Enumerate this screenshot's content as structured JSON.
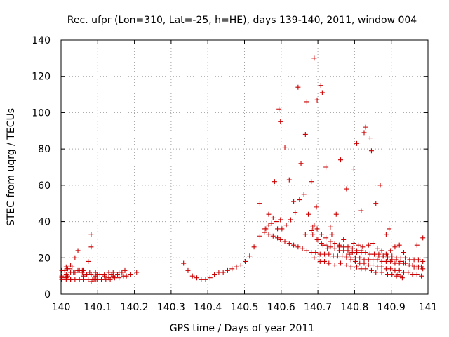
{
  "chart_data": {
    "type": "scatter",
    "title": "Rec. ufpr (Lon=310, Lat=-25, h=HE), days 139-140, 2011, window 004",
    "xlabel": "GPS time / Days of year 2011",
    "ylabel": "STEC from uqrg / TECUs",
    "xlim": [
      140,
      141
    ],
    "ylim": [
      0,
      140
    ],
    "xticks": [
      140,
      140.1,
      140.2,
      140.3,
      140.4,
      140.5,
      140.6,
      140.7,
      140.8,
      140.9,
      141
    ],
    "xtick_labels": [
      "140",
      "140.1",
      "140.2",
      "140.3",
      "140.4",
      "140.5",
      "140.6",
      "140.7",
      "140.8",
      "140.9",
      "141"
    ],
    "yticks": [
      0,
      20,
      40,
      60,
      80,
      100,
      120,
      140
    ],
    "ytick_labels": [
      "0",
      "20",
      "40",
      "60",
      "80",
      "100",
      "120",
      "140"
    ],
    "grid": true,
    "marker": "+",
    "series": [
      {
        "name": "STEC",
        "color": "#cc0000",
        "x": [
          140.002,
          140.002,
          140.002,
          140.014,
          140.014,
          140.014,
          140.018,
          140.026,
          140.026,
          140.026,
          140.038,
          140.038,
          140.046,
          140.058,
          140.062,
          140.074,
          140.082,
          140.082,
          140.082,
          140.09,
          140.094,
          140.094,
          140.106,
          140.118,
          140.13,
          140.142,
          140.154,
          140.166,
          140.178,
          140.19,
          140.206,
          140.002,
          140.014,
          140.026,
          140.038,
          140.05,
          140.062,
          140.074,
          140.086,
          140.098,
          140.11,
          140.122,
          140.134,
          140.146,
          140.158,
          140.17,
          140.01,
          140.022,
          140.034,
          140.046,
          140.058,
          140.07,
          140.082,
          140.094,
          140.106,
          140.118,
          140.13,
          140.142,
          140.018,
          140.03,
          140.05,
          140.062,
          140.078,
          140.098,
          140.138,
          140.158,
          140.174,
          140.334,
          140.346,
          140.358,
          140.37,
          140.382,
          140.394,
          140.406,
          140.418,
          140.43,
          140.442,
          140.454,
          140.466,
          140.478,
          140.49,
          140.502,
          140.514,
          140.526,
          140.542,
          140.554,
          140.558,
          140.566,
          140.574,
          140.586,
          140.598,
          140.542,
          140.554,
          140.566,
          140.578,
          140.59,
          140.598,
          140.61,
          140.622,
          140.634,
          140.646,
          140.658,
          140.67,
          140.682,
          140.694,
          140.706,
          140.718,
          140.73,
          140.742,
          140.754,
          140.766,
          140.778,
          140.79,
          140.802,
          140.814,
          140.826,
          140.838,
          140.85,
          140.862,
          140.874,
          140.886,
          140.898,
          140.91,
          140.922,
          140.934,
          140.946,
          140.958,
          140.97,
          140.982,
          140.566,
          140.578,
          140.59,
          140.602,
          140.614,
          140.626,
          140.638,
          140.65,
          140.662,
          140.674,
          140.686,
          140.698,
          140.71,
          140.722,
          140.734,
          140.746,
          140.758,
          140.77,
          140.782,
          140.794,
          140.806,
          140.818,
          140.83,
          140.842,
          140.854,
          140.866,
          140.878,
          140.89,
          140.902,
          140.914,
          140.926,
          140.938,
          140.95,
          140.962,
          140.974,
          140.986,
          140.686,
          140.698,
          140.71,
          140.722,
          140.734,
          140.746,
          140.758,
          140.77,
          140.782,
          140.794,
          140.806,
          140.818,
          140.83,
          140.842,
          140.854,
          140.866,
          140.878,
          140.89,
          140.902,
          140.914,
          140.926,
          140.938,
          140.95,
          140.962,
          140.974,
          140.986,
          140.778,
          140.79,
          140.802,
          140.814,
          140.826,
          140.838,
          140.85,
          140.862,
          140.874,
          140.886,
          140.898,
          140.91,
          140.922,
          140.934,
          140.946,
          140.958,
          140.97,
          140.982,
          140.582,
          140.594,
          140.598,
          140.61,
          140.622,
          140.634,
          140.646,
          140.654,
          140.666,
          140.67,
          140.682,
          140.69,
          140.696,
          140.698,
          140.708,
          140.712,
          140.722,
          140.734,
          140.75,
          140.762,
          140.778,
          140.798,
          140.806,
          140.818,
          140.826,
          140.83,
          140.842,
          140.846,
          140.858,
          140.87,
          140.886,
          140.894,
          140.918,
          140.93,
          140.97,
          140.986,
          140.666,
          140.682,
          140.69,
          140.702,
          140.714,
          140.726,
          140.738,
          140.758,
          140.77,
          140.786,
          140.798,
          140.81,
          140.822,
          140.838,
          140.85,
          140.862,
          140.874,
          140.886,
          140.898,
          140.91,
          140.922,
          140.934,
          140.69,
          140.706,
          140.718,
          140.73,
          140.746,
          140.762,
          140.778,
          140.79,
          140.806,
          140.818,
          140.83,
          140.846,
          140.858,
          140.874,
          140.89,
          140.902,
          140.914,
          140.926
        ],
        "y": [
          10,
          13,
          9,
          11,
          15,
          9,
          10,
          12,
          16,
          8,
          20,
          12,
          24,
          13,
          10,
          18,
          33,
          26,
          7,
          8,
          8,
          12,
          11,
          10,
          9,
          10,
          11,
          12,
          10,
          11,
          12,
          8,
          8,
          8,
          8,
          8,
          8,
          8,
          8,
          8,
          8,
          8,
          8,
          9,
          9,
          10,
          13,
          14,
          12,
          13,
          12,
          11,
          11,
          10,
          11,
          11,
          12,
          12,
          14,
          15,
          13,
          13,
          12,
          11,
          11,
          12,
          13,
          17,
          13,
          10,
          9,
          8,
          8,
          9,
          11,
          12,
          12,
          13,
          14,
          15,
          16,
          18,
          21,
          26,
          32,
          34,
          36,
          38,
          39,
          40,
          41,
          50,
          36,
          33,
          32,
          31,
          30,
          29,
          28,
          27,
          26,
          25,
          24,
          23,
          23,
          22,
          22,
          22,
          21,
          21,
          21,
          21,
          20,
          20,
          20,
          19,
          19,
          19,
          19,
          18,
          18,
          18,
          17,
          17,
          17,
          16,
          16,
          15,
          15,
          44,
          42,
          36,
          36,
          38,
          41,
          45,
          52,
          55,
          44,
          33,
          30,
          28,
          27,
          26,
          25,
          24,
          24,
          24,
          23,
          23,
          23,
          23,
          22,
          22,
          22,
          21,
          21,
          21,
          20,
          20,
          20,
          19,
          19,
          19,
          18,
          37,
          36,
          33,
          31,
          29,
          28,
          27,
          26,
          26,
          25,
          24,
          24,
          23,
          22,
          22,
          21,
          21,
          20,
          19,
          19,
          18,
          17,
          16,
          15,
          15,
          14,
          20,
          19,
          18,
          17,
          17,
          16,
          16,
          15,
          15,
          14,
          14,
          13,
          13,
          12,
          12,
          11,
          11,
          10,
          62,
          102,
          95,
          81,
          63,
          51,
          114,
          72,
          88,
          106,
          62,
          130,
          48,
          107,
          115,
          111,
          70,
          37,
          44,
          74,
          58,
          69,
          83,
          46,
          89,
          92,
          86,
          79,
          50,
          60,
          33,
          36,
          11,
          9,
          27,
          31,
          33,
          35,
          38,
          30,
          27,
          25,
          33,
          26,
          30,
          22,
          28,
          27,
          26,
          27,
          28,
          25,
          24,
          22,
          24,
          26,
          27,
          23,
          20,
          18,
          18,
          17,
          16,
          17,
          16,
          15,
          15,
          14,
          14,
          13,
          12,
          12,
          11,
          11,
          10,
          10
        ]
      }
    ]
  }
}
